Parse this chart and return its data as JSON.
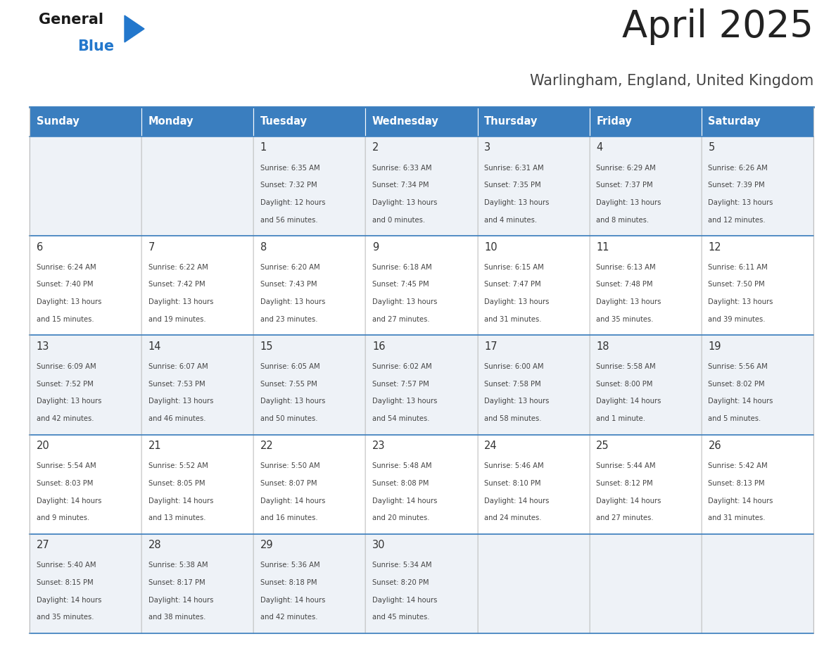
{
  "title": "April 2025",
  "subtitle": "Warlingham, England, United Kingdom",
  "days_of_week": [
    "Sunday",
    "Monday",
    "Tuesday",
    "Wednesday",
    "Thursday",
    "Friday",
    "Saturday"
  ],
  "header_bg": "#3a7ebf",
  "header_text": "#ffffff",
  "row_bg_odd": "#eef2f7",
  "row_bg_even": "#ffffff",
  "border_color": "#3a7ebf",
  "day_num_color": "#333333",
  "text_color": "#444444",
  "title_color": "#222222",
  "subtitle_color": "#444444",
  "logo_general_color": "#1a1a1a",
  "logo_blue_color": "#2277cc",
  "weeks": [
    {
      "days": [
        {
          "day": "",
          "sunrise": "",
          "sunset": "",
          "daylight": ""
        },
        {
          "day": "",
          "sunrise": "",
          "sunset": "",
          "daylight": ""
        },
        {
          "day": "1",
          "sunrise": "6:35 AM",
          "sunset": "7:32 PM",
          "daylight": "12 hours\nand 56 minutes."
        },
        {
          "day": "2",
          "sunrise": "6:33 AM",
          "sunset": "7:34 PM",
          "daylight": "13 hours\nand 0 minutes."
        },
        {
          "day": "3",
          "sunrise": "6:31 AM",
          "sunset": "7:35 PM",
          "daylight": "13 hours\nand 4 minutes."
        },
        {
          "day": "4",
          "sunrise": "6:29 AM",
          "sunset": "7:37 PM",
          "daylight": "13 hours\nand 8 minutes."
        },
        {
          "day": "5",
          "sunrise": "6:26 AM",
          "sunset": "7:39 PM",
          "daylight": "13 hours\nand 12 minutes."
        }
      ]
    },
    {
      "days": [
        {
          "day": "6",
          "sunrise": "6:24 AM",
          "sunset": "7:40 PM",
          "daylight": "13 hours\nand 15 minutes."
        },
        {
          "day": "7",
          "sunrise": "6:22 AM",
          "sunset": "7:42 PM",
          "daylight": "13 hours\nand 19 minutes."
        },
        {
          "day": "8",
          "sunrise": "6:20 AM",
          "sunset": "7:43 PM",
          "daylight": "13 hours\nand 23 minutes."
        },
        {
          "day": "9",
          "sunrise": "6:18 AM",
          "sunset": "7:45 PM",
          "daylight": "13 hours\nand 27 minutes."
        },
        {
          "day": "10",
          "sunrise": "6:15 AM",
          "sunset": "7:47 PM",
          "daylight": "13 hours\nand 31 minutes."
        },
        {
          "day": "11",
          "sunrise": "6:13 AM",
          "sunset": "7:48 PM",
          "daylight": "13 hours\nand 35 minutes."
        },
        {
          "day": "12",
          "sunrise": "6:11 AM",
          "sunset": "7:50 PM",
          "daylight": "13 hours\nand 39 minutes."
        }
      ]
    },
    {
      "days": [
        {
          "day": "13",
          "sunrise": "6:09 AM",
          "sunset": "7:52 PM",
          "daylight": "13 hours\nand 42 minutes."
        },
        {
          "day": "14",
          "sunrise": "6:07 AM",
          "sunset": "7:53 PM",
          "daylight": "13 hours\nand 46 minutes."
        },
        {
          "day": "15",
          "sunrise": "6:05 AM",
          "sunset": "7:55 PM",
          "daylight": "13 hours\nand 50 minutes."
        },
        {
          "day": "16",
          "sunrise": "6:02 AM",
          "sunset": "7:57 PM",
          "daylight": "13 hours\nand 54 minutes."
        },
        {
          "day": "17",
          "sunrise": "6:00 AM",
          "sunset": "7:58 PM",
          "daylight": "13 hours\nand 58 minutes."
        },
        {
          "day": "18",
          "sunrise": "5:58 AM",
          "sunset": "8:00 PM",
          "daylight": "14 hours\nand 1 minute."
        },
        {
          "day": "19",
          "sunrise": "5:56 AM",
          "sunset": "8:02 PM",
          "daylight": "14 hours\nand 5 minutes."
        }
      ]
    },
    {
      "days": [
        {
          "day": "20",
          "sunrise": "5:54 AM",
          "sunset": "8:03 PM",
          "daylight": "14 hours\nand 9 minutes."
        },
        {
          "day": "21",
          "sunrise": "5:52 AM",
          "sunset": "8:05 PM",
          "daylight": "14 hours\nand 13 minutes."
        },
        {
          "day": "22",
          "sunrise": "5:50 AM",
          "sunset": "8:07 PM",
          "daylight": "14 hours\nand 16 minutes."
        },
        {
          "day": "23",
          "sunrise": "5:48 AM",
          "sunset": "8:08 PM",
          "daylight": "14 hours\nand 20 minutes."
        },
        {
          "day": "24",
          "sunrise": "5:46 AM",
          "sunset": "8:10 PM",
          "daylight": "14 hours\nand 24 minutes."
        },
        {
          "day": "25",
          "sunrise": "5:44 AM",
          "sunset": "8:12 PM",
          "daylight": "14 hours\nand 27 minutes."
        },
        {
          "day": "26",
          "sunrise": "5:42 AM",
          "sunset": "8:13 PM",
          "daylight": "14 hours\nand 31 minutes."
        }
      ]
    },
    {
      "days": [
        {
          "day": "27",
          "sunrise": "5:40 AM",
          "sunset": "8:15 PM",
          "daylight": "14 hours\nand 35 minutes."
        },
        {
          "day": "28",
          "sunrise": "5:38 AM",
          "sunset": "8:17 PM",
          "daylight": "14 hours\nand 38 minutes."
        },
        {
          "day": "29",
          "sunrise": "5:36 AM",
          "sunset": "8:18 PM",
          "daylight": "14 hours\nand 42 minutes."
        },
        {
          "day": "30",
          "sunrise": "5:34 AM",
          "sunset": "8:20 PM",
          "daylight": "14 hours\nand 45 minutes."
        },
        {
          "day": "",
          "sunrise": "",
          "sunset": "",
          "daylight": ""
        },
        {
          "day": "",
          "sunrise": "",
          "sunset": "",
          "daylight": ""
        },
        {
          "day": "",
          "sunrise": "",
          "sunset": "",
          "daylight": ""
        }
      ]
    }
  ]
}
